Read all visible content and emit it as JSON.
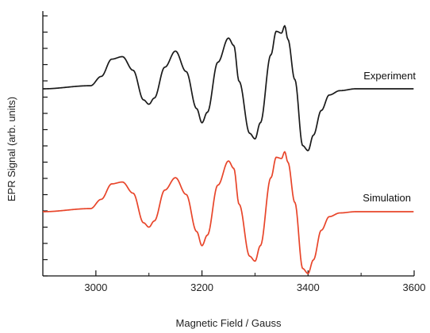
{
  "chart_data": {
    "type": "line",
    "title": "",
    "xlabel": "Magnetic Field / Gauss",
    "ylabel": "EPR Signal (arb. units)",
    "xlim": [
      2900,
      3600
    ],
    "ylim": [
      -1.6,
      1.6
    ],
    "x_ticks": [
      3000,
      3200,
      3400,
      3600
    ],
    "y_tick_count": 16,
    "grid": false,
    "legend": "inline labels to the right of each trace",
    "series": [
      {
        "name": "Experiment",
        "color": "#1a1a1a",
        "x": [
          2900,
          2990,
          3010,
          3030,
          3050,
          3070,
          3090,
          3100,
          3110,
          3130,
          3150,
          3170,
          3190,
          3200,
          3210,
          3230,
          3250,
          3260,
          3270,
          3290,
          3300,
          3310,
          3330,
          3340,
          3350,
          3356,
          3362,
          3375,
          3390,
          3400,
          3410,
          3425,
          3440,
          3460,
          3490,
          3600
        ],
        "y": [
          0,
          0.05,
          0.2,
          0.48,
          0.52,
          0.3,
          -0.18,
          -0.25,
          -0.15,
          0.35,
          0.61,
          0.28,
          -0.32,
          -0.55,
          -0.38,
          0.43,
          0.82,
          0.7,
          0.12,
          -0.72,
          -0.81,
          -0.55,
          0.55,
          0.93,
          0.9,
          1.02,
          0.8,
          0.15,
          -0.92,
          -1.0,
          -0.75,
          -0.35,
          -0.1,
          -0.03,
          0,
          0
        ]
      },
      {
        "name": "Simulation",
        "color": "#e8452a",
        "x": [
          2900,
          2990,
          3010,
          3030,
          3050,
          3070,
          3090,
          3100,
          3110,
          3130,
          3150,
          3170,
          3190,
          3200,
          3210,
          3230,
          3250,
          3260,
          3270,
          3290,
          3300,
          3310,
          3330,
          3340,
          3350,
          3356,
          3362,
          3375,
          3390,
          3400,
          3410,
          3425,
          3440,
          3460,
          3490,
          3600
        ],
        "y": [
          0,
          0.05,
          0.2,
          0.45,
          0.48,
          0.3,
          -0.18,
          -0.25,
          -0.15,
          0.35,
          0.55,
          0.28,
          -0.32,
          -0.55,
          -0.38,
          0.43,
          0.82,
          0.7,
          0.12,
          -0.72,
          -0.8,
          -0.55,
          0.55,
          0.88,
          0.86,
          0.97,
          0.8,
          0.15,
          -0.92,
          -1.0,
          -0.78,
          -0.3,
          -0.08,
          -0.02,
          0,
          0
        ]
      }
    ]
  }
}
